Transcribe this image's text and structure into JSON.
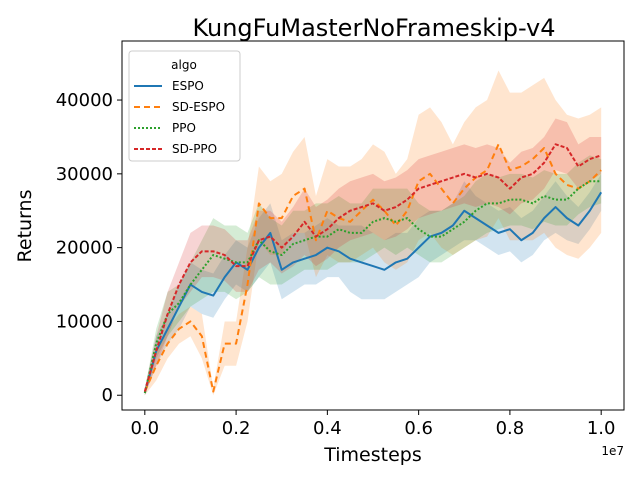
{
  "chart_data": {
    "type": "line",
    "title": "KungFuMasterNoFrameskip-v4",
    "xlabel": "Timesteps",
    "ylabel": "Returns",
    "x_offset_label": "1e7",
    "xlim": [
      -0.05,
      1.05
    ],
    "ylim": [
      -2000,
      48000
    ],
    "xticks": [
      0.0,
      0.2,
      0.4,
      0.6,
      0.8,
      1.0
    ],
    "xtick_labels": [
      "0.0",
      "0.2",
      "0.4",
      "0.6",
      "0.8",
      "1.0"
    ],
    "yticks": [
      0,
      10000,
      20000,
      30000,
      40000
    ],
    "ytick_labels": [
      "0",
      "10000",
      "20000",
      "30000",
      "40000"
    ],
    "grid": false,
    "legend": {
      "title": "algo",
      "placement": "top-left"
    },
    "x": [
      0.0,
      0.025,
      0.05,
      0.075,
      0.1,
      0.125,
      0.15,
      0.175,
      0.2,
      0.225,
      0.25,
      0.275,
      0.3,
      0.325,
      0.35,
      0.375,
      0.4,
      0.425,
      0.45,
      0.475,
      0.5,
      0.525,
      0.55,
      0.575,
      0.6,
      0.625,
      0.65,
      0.675,
      0.7,
      0.725,
      0.75,
      0.775,
      0.8,
      0.825,
      0.85,
      0.875,
      0.9,
      0.925,
      0.95,
      0.975,
      1.0
    ],
    "series": [
      {
        "name": "ESPO",
        "color": "#1f77b4",
        "dash": "solid",
        "values": [
          300,
          6000,
          9000,
          12000,
          15000,
          14000,
          13500,
          16000,
          18000,
          17000,
          20000,
          22000,
          17000,
          18000,
          18500,
          19000,
          20000,
          19500,
          18500,
          18000,
          17500,
          17000,
          18000,
          18500,
          20000,
          21500,
          22000,
          23000,
          25000,
          24000,
          23000,
          22000,
          22500,
          21000,
          22000,
          24000,
          25500,
          24000,
          23000,
          25000,
          27500
        ],
        "lower": [
          0,
          4000,
          7000,
          9000,
          12000,
          11000,
          10500,
          13000,
          15000,
          14000,
          16000,
          18000,
          13000,
          14000,
          15000,
          15000,
          16000,
          16000,
          14000,
          13000,
          13000,
          13000,
          14000,
          15000,
          16000,
          18000,
          19000,
          20000,
          21000,
          21000,
          20000,
          19000,
          19500,
          18000,
          19000,
          21000,
          22000,
          21000,
          20500,
          22500,
          25000
        ],
        "upper": [
          800,
          8000,
          11000,
          15000,
          18000,
          17000,
          16500,
          19000,
          21000,
          20000,
          24000,
          26000,
          21000,
          22000,
          22000,
          23000,
          24000,
          23000,
          23000,
          23000,
          22000,
          21000,
          22000,
          22000,
          24000,
          25000,
          25000,
          26000,
          29000,
          27000,
          26000,
          25000,
          25500,
          24000,
          25000,
          27000,
          29000,
          27000,
          25500,
          27500,
          30000
        ]
      },
      {
        "name": "SD-ESPO",
        "color": "#ff7f0e",
        "dash": "6,4",
        "values": [
          500,
          4000,
          7000,
          9000,
          10000,
          8000,
          500,
          7000,
          7000,
          15000,
          26000,
          24000,
          24000,
          27000,
          28000,
          21000,
          25000,
          24000,
          23500,
          25000,
          26500,
          25000,
          23000,
          25000,
          29000,
          30000,
          28000,
          26000,
          28000,
          29500,
          30500,
          34000,
          30500,
          31000,
          32000,
          33500,
          30000,
          28500,
          28000,
          29000,
          30500
        ],
        "lower": [
          0,
          2000,
          5000,
          7000,
          8000,
          5000,
          0,
          4000,
          4000,
          10000,
          21000,
          19000,
          19000,
          22000,
          22000,
          16000,
          19000,
          18000,
          18000,
          19000,
          20000,
          18000,
          17000,
          18000,
          21000,
          22000,
          20000,
          19000,
          20000,
          21000,
          21500,
          24000,
          21000,
          21000,
          21000,
          22000,
          20000,
          19000,
          18500,
          20000,
          22000
        ],
        "upper": [
          1000,
          6000,
          9000,
          11000,
          12000,
          11000,
          1000,
          10000,
          10000,
          20000,
          31000,
          29000,
          30000,
          33000,
          35000,
          27000,
          32000,
          31000,
          31000,
          32000,
          34000,
          33000,
          30000,
          32000,
          38000,
          39000,
          37000,
          34000,
          37000,
          39000,
          40000,
          44000,
          41000,
          41000,
          42000,
          43000,
          40000,
          38000,
          37500,
          38000,
          39000
        ]
      },
      {
        "name": "PPO",
        "color": "#2ca02c",
        "dash": "2,2",
        "values": [
          300,
          7000,
          11000,
          12500,
          15000,
          17000,
          19000,
          18500,
          18000,
          18000,
          21000,
          19500,
          19000,
          20500,
          21000,
          21500,
          21500,
          22500,
          22000,
          22000,
          23500,
          24000,
          23500,
          24000,
          22500,
          21500,
          21500,
          22500,
          23500,
          25000,
          26000,
          26000,
          26500,
          26500,
          26000,
          27000,
          26500,
          26500,
          28000,
          29000,
          29000
        ],
        "lower": [
          0,
          5000,
          8000,
          10000,
          12000,
          13000,
          14000,
          14000,
          13000,
          14000,
          16000,
          15000,
          15000,
          16000,
          17000,
          17000,
          17000,
          18000,
          18000,
          18000,
          19000,
          20000,
          19000,
          20000,
          19000,
          18000,
          18000,
          19000,
          20000,
          21000,
          22000,
          22500,
          23000,
          23000,
          22500,
          23500,
          23000,
          23000,
          24500,
          25500,
          26000
        ],
        "upper": [
          800,
          9000,
          14000,
          15000,
          18000,
          21000,
          24000,
          23000,
          23000,
          22000,
          26000,
          24000,
          23000,
          25000,
          25000,
          26000,
          26000,
          27000,
          26000,
          26000,
          28000,
          28000,
          28000,
          28000,
          26000,
          25000,
          25000,
          26000,
          27000,
          29000,
          30000,
          29500,
          30000,
          30000,
          29500,
          30500,
          30000,
          30000,
          31500,
          32500,
          32000
        ]
      },
      {
        "name": "SD-PPO",
        "color": "#d62728",
        "dash": "4,2",
        "values": [
          500,
          6000,
          11000,
          15000,
          18000,
          19500,
          19500,
          19000,
          17500,
          17500,
          21000,
          21500,
          20000,
          21500,
          23500,
          21500,
          22500,
          24000,
          25000,
          25500,
          26000,
          25000,
          25500,
          26500,
          28000,
          28500,
          29000,
          29500,
          30000,
          29500,
          30000,
          29500,
          28000,
          29500,
          30000,
          31500,
          34000,
          33500,
          31000,
          32000,
          32500
        ],
        "lower": [
          0,
          4000,
          8000,
          12000,
          14000,
          16000,
          16000,
          15500,
          14000,
          14000,
          17000,
          18000,
          16500,
          17500,
          19000,
          17500,
          18500,
          20000,
          21000,
          21500,
          22000,
          21000,
          21500,
          22500,
          24000,
          24500,
          25000,
          25500,
          26000,
          25500,
          26000,
          25500,
          24500,
          26000,
          26500,
          28000,
          30500,
          30000,
          28000,
          29000,
          30000
        ],
        "upper": [
          1000,
          8000,
          14000,
          18000,
          22000,
          23000,
          23000,
          22500,
          21000,
          21000,
          25000,
          25000,
          23500,
          25500,
          28000,
          25500,
          26500,
          28000,
          29000,
          29500,
          30000,
          29000,
          29500,
          30500,
          32000,
          32500,
          33000,
          33500,
          34000,
          33500,
          34000,
          33500,
          31500,
          33000,
          33500,
          35000,
          37500,
          37000,
          34000,
          35000,
          35000
        ]
      }
    ]
  }
}
